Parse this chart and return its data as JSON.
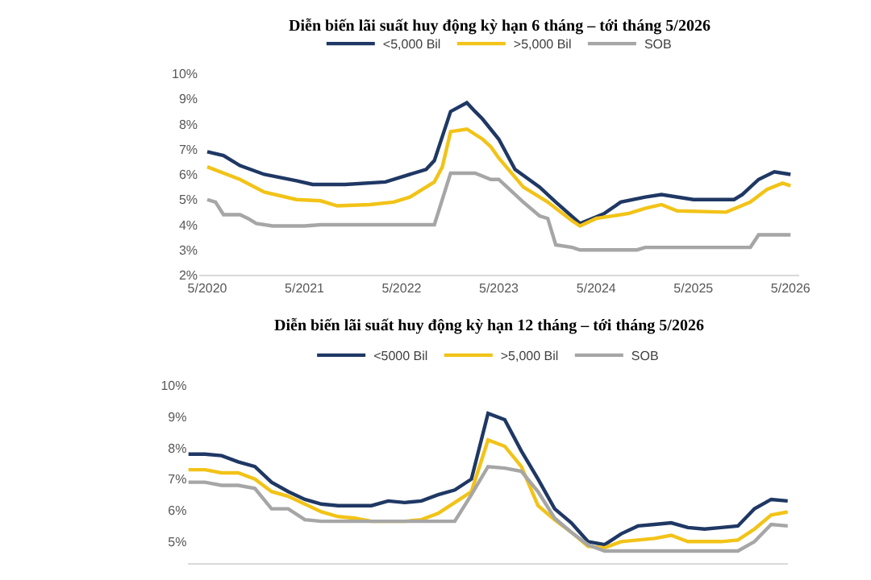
{
  "chart_data": [
    {
      "type": "line",
      "title": "Diễn biến lãi suất huy động kỳ hạn 6 tháng – tới tháng 5/2026",
      "legend": "top",
      "grid": false,
      "marker": "none",
      "line_style": "solid",
      "xlim": [
        "2020-04",
        "2026-06"
      ],
      "xticks": [
        {
          "value": "2020-05",
          "label": "5/2020"
        },
        {
          "value": "2021-05",
          "label": "5/2021"
        },
        {
          "value": "2022-05",
          "label": "5/2022"
        },
        {
          "value": "2023-05",
          "label": "5/2023"
        },
        {
          "value": "2024-05",
          "label": "5/2024"
        },
        {
          "value": "2025-05",
          "label": "5/2025"
        },
        {
          "value": "2026-05",
          "label": "5/2026"
        }
      ],
      "ylim": [
        2,
        10
      ],
      "yticks": [
        {
          "value": 2,
          "label": "2%"
        },
        {
          "value": 3,
          "label": "3%"
        },
        {
          "value": 4,
          "label": "4%"
        },
        {
          "value": 5,
          "label": "5%"
        },
        {
          "value": 6,
          "label": "6%"
        },
        {
          "value": 7,
          "label": "7%"
        },
        {
          "value": 8,
          "label": "8%"
        },
        {
          "value": 9,
          "label": "9%"
        },
        {
          "value": 10,
          "label": "10%"
        }
      ],
      "series": [
        {
          "name": "<5,000 Bil",
          "color": "#1f3864",
          "x": [
            "2020-05",
            "2020-07",
            "2020-09",
            "2020-12",
            "2021-04",
            "2021-06",
            "2021-10",
            "2022-03",
            "2022-05",
            "2022-08",
            "2022-09",
            "2022-11",
            "2023-01",
            "2023-02",
            "2023-03",
            "2023-05",
            "2023-07",
            "2023-10",
            "2023-12",
            "2024-03",
            "2024-06",
            "2024-08",
            "2024-11",
            "2025-01",
            "2025-05",
            "2025-10",
            "2025-11",
            "2026-01",
            "2026-03",
            "2026-05"
          ],
          "values": [
            6.9,
            6.75,
            6.35,
            6.0,
            5.75,
            5.6,
            5.6,
            5.7,
            5.9,
            6.2,
            6.55,
            8.5,
            8.85,
            8.5,
            8.2,
            7.4,
            6.2,
            5.5,
            4.9,
            4.05,
            4.45,
            4.9,
            5.1,
            5.2,
            5.0,
            5.0,
            5.2,
            5.8,
            6.1,
            6.0
          ]
        },
        {
          "name": ">5,000 Bil",
          "color": "#f2c318",
          "x": [
            "2020-05",
            "2020-09",
            "2020-12",
            "2021-04",
            "2021-07",
            "2021-09",
            "2022-01",
            "2022-04",
            "2022-06",
            "2022-09",
            "2022-10",
            "2022-11",
            "2023-01",
            "2023-03",
            "2023-04",
            "2023-05",
            "2023-08",
            "2023-11",
            "2024-02",
            "2024-03",
            "2024-05",
            "2024-09",
            "2024-11",
            "2025-01",
            "2025-03",
            "2025-09",
            "2025-12",
            "2026-02",
            "2026-04",
            "2026-05"
          ],
          "values": [
            6.3,
            5.8,
            5.3,
            5.0,
            4.95,
            4.75,
            4.8,
            4.9,
            5.1,
            5.7,
            6.3,
            7.7,
            7.8,
            7.4,
            7.1,
            6.65,
            5.5,
            4.9,
            4.15,
            3.95,
            4.25,
            4.45,
            4.65,
            4.8,
            4.55,
            4.5,
            4.9,
            5.4,
            5.65,
            5.55
          ]
        },
        {
          "name": "SOB",
          "color": "#a6a6a6",
          "x": [
            "2020-05",
            "2020-06",
            "2020-07",
            "2020-09",
            "2020-10",
            "2020-11",
            "2021-01",
            "2021-05",
            "2021-07",
            "2022-09",
            "2022-11",
            "2023-02",
            "2023-04",
            "2023-05",
            "2023-08",
            "2023-10",
            "2023-11",
            "2023-12",
            "2024-02",
            "2024-03",
            "2024-10",
            "2024-11",
            "2025-12",
            "2026-01",
            "2026-05"
          ],
          "values": [
            5.0,
            4.9,
            4.4,
            4.4,
            4.25,
            4.05,
            3.95,
            3.95,
            4.0,
            4.0,
            6.05,
            6.05,
            5.8,
            5.8,
            4.9,
            4.35,
            4.25,
            3.2,
            3.1,
            3.0,
            3.0,
            3.1,
            3.1,
            3.6,
            3.6
          ]
        }
      ]
    },
    {
      "type": "line",
      "title": "Diễn biến lãi suất huy động kỳ hạn 12 tháng – tới tháng 5/2026",
      "legend": "top",
      "grid": false,
      "marker": "none",
      "line_style": "solid",
      "tick_labels": "y",
      "categories": [
        null,
        null,
        null,
        null,
        null,
        null,
        null,
        null,
        null,
        null,
        null,
        null,
        null,
        null,
        null,
        null,
        null,
        null,
        null,
        null,
        null,
        null,
        null,
        null,
        null,
        null,
        null,
        null,
        null,
        null,
        null,
        null,
        null,
        null,
        null,
        null,
        null
      ],
      "ylim": [
        4.3,
        10
      ],
      "yticks": [
        {
          "value": 5,
          "label": "5%"
        },
        {
          "value": 6,
          "label": "6%"
        },
        {
          "value": 7,
          "label": "7%"
        },
        {
          "value": 8,
          "label": "8%"
        },
        {
          "value": 9,
          "label": "9%"
        },
        {
          "value": 10,
          "label": "10%"
        }
      ],
      "series": [
        {
          "name": "<5000 Bil",
          "color": "#1f3864",
          "values": [
            7.8,
            7.8,
            7.75,
            7.55,
            7.4,
            6.9,
            6.6,
            6.35,
            6.2,
            6.15,
            6.15,
            6.15,
            6.3,
            6.25,
            6.3,
            6.5,
            6.65,
            7.0,
            9.1,
            8.9,
            7.9,
            7.0,
            6.05,
            5.6,
            5.0,
            4.9,
            5.25,
            5.5,
            5.55,
            5.6,
            5.45,
            5.4,
            5.45,
            5.5,
            6.05,
            6.35,
            6.3
          ]
        },
        {
          "name": ">5,000 Bil",
          "color": "#f2c318",
          "values": [
            7.3,
            7.3,
            7.2,
            7.2,
            7.0,
            6.6,
            6.45,
            6.2,
            5.95,
            5.8,
            5.75,
            5.65,
            5.65,
            5.65,
            5.7,
            5.9,
            6.25,
            6.6,
            8.25,
            8.05,
            7.4,
            6.15,
            5.7,
            5.3,
            4.85,
            4.8,
            5.0,
            5.05,
            5.1,
            5.2,
            5.0,
            5.0,
            5.0,
            5.05,
            5.4,
            5.85,
            5.95
          ]
        },
        {
          "name": "SOB",
          "color": "#a6a6a6",
          "values": [
            6.9,
            6.9,
            6.8,
            6.8,
            6.7,
            6.05,
            6.05,
            5.7,
            5.65,
            5.65,
            5.65,
            5.65,
            5.65,
            5.65,
            5.65,
            5.65,
            5.65,
            6.5,
            7.4,
            7.35,
            7.25,
            6.6,
            5.75,
            5.3,
            4.9,
            4.7,
            4.7,
            4.7,
            4.7,
            4.7,
            4.7,
            4.7,
            4.7,
            4.7,
            5.0,
            5.55,
            5.5
          ]
        }
      ]
    }
  ]
}
